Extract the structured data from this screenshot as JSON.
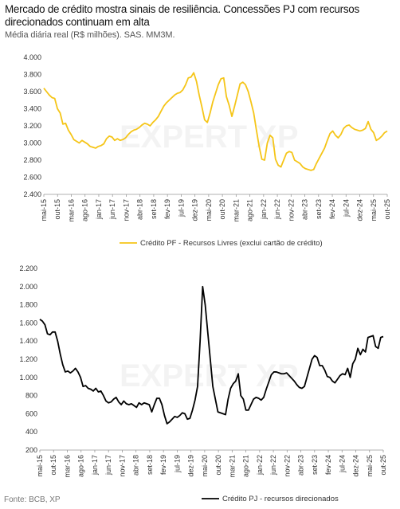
{
  "header": {
    "title": "Mercado de crédito mostra sinais de resiliência. Concessões PJ com recursos direcionados continuam em alta",
    "subtitle": "Média diária real (R$ milhões). SAS. MM3M."
  },
  "source": "Fonte: BCB, XP",
  "watermark": "EXPERT XP",
  "chart_data": [
    {
      "type": "line",
      "color": "#f5c518",
      "ylim": [
        2400,
        4000
      ],
      "yticks": [
        2400,
        2600,
        2800,
        3000,
        3200,
        3400,
        3600,
        3800,
        4000
      ],
      "ytick_labels": [
        "2.400",
        "2.600",
        "2.800",
        "3.000",
        "3.200",
        "3.400",
        "3.600",
        "3.800",
        "4.000"
      ],
      "xtick_labels": [
        "mai-15",
        "out-15",
        "mar-16",
        "ago-16",
        "jan-17",
        "jun-17",
        "nov-17",
        "abr-18",
        "set-18",
        "fev-19",
        "jul-19",
        "dez-19",
        "mai-20",
        "out-20",
        "mar-21",
        "ago-21",
        "jan-22",
        "jun-22",
        "nov-22",
        "abr-23",
        "set-23",
        "fev-24",
        "jul-24",
        "dez-24",
        "mai-25",
        "out-25"
      ],
      "series": [
        {
          "name": "Crédito PF - Recursos Livres (exclui cartão de crédito)",
          "values": [
            3640,
            3600,
            3560,
            3530,
            3520,
            3400,
            3350,
            3220,
            3230,
            3150,
            3100,
            3040,
            3020,
            3000,
            3030,
            3010,
            2990,
            2960,
            2950,
            2940,
            2960,
            2970,
            2990,
            3050,
            3080,
            3070,
            3030,
            3050,
            3030,
            3040,
            3060,
            3100,
            3130,
            3150,
            3160,
            3180,
            3210,
            3230,
            3220,
            3200,
            3240,
            3270,
            3310,
            3370,
            3430,
            3470,
            3500,
            3530,
            3560,
            3580,
            3590,
            3620,
            3680,
            3760,
            3770,
            3820,
            3720,
            3560,
            3420,
            3270,
            3240,
            3350,
            3480,
            3580,
            3680,
            3750,
            3760,
            3540,
            3440,
            3310,
            3430,
            3560,
            3690,
            3710,
            3680,
            3600,
            3480,
            3350,
            3150,
            2960,
            2810,
            2800,
            3000,
            3090,
            3060,
            2810,
            2740,
            2720,
            2800,
            2880,
            2900,
            2890,
            2800,
            2780,
            2760,
            2720,
            2700,
            2690,
            2680,
            2690,
            2760,
            2820,
            2880,
            2940,
            3030,
            3110,
            3140,
            3090,
            3060,
            3100,
            3170,
            3200,
            3210,
            3180,
            3160,
            3150,
            3140,
            3150,
            3170,
            3250,
            3160,
            3120,
            3030,
            3050,
            3080,
            3120,
            3140
          ]
        }
      ]
    },
    {
      "type": "line",
      "color": "#000000",
      "ylim": [
        200,
        2200
      ],
      "yticks": [
        200,
        400,
        600,
        800,
        1000,
        1200,
        1400,
        1600,
        1800,
        2000,
        2200
      ],
      "ytick_labels": [
        "200",
        "400",
        "600",
        "800",
        "1.000",
        "1.200",
        "1.400",
        "1.600",
        "1.800",
        "2.000",
        "2.200"
      ],
      "xtick_labels": [
        "mai-15",
        "out-15",
        "mar-16",
        "ago-16",
        "jan-17",
        "jun-17",
        "nov-17",
        "abr-18",
        "set-18",
        "fev-19",
        "jul-19",
        "dez-19",
        "mai-20",
        "out-20",
        "mar-21",
        "ago-21",
        "jan-22",
        "jun-22",
        "nov-22",
        "abr-23",
        "set-23",
        "fev-24",
        "jul-24",
        "dez-24",
        "mai-25",
        "out-25"
      ],
      "series": [
        {
          "name": "Crédito PJ - recursos direcionados",
          "values": [
            1640,
            1620,
            1580,
            1480,
            1470,
            1500,
            1500,
            1400,
            1260,
            1140,
            1060,
            1070,
            1050,
            1070,
            1100,
            1060,
            1000,
            900,
            910,
            880,
            870,
            850,
            880,
            840,
            850,
            800,
            740,
            720,
            730,
            760,
            780,
            730,
            700,
            740,
            710,
            700,
            710,
            690,
            670,
            720,
            700,
            720,
            710,
            700,
            620,
            700,
            770,
            770,
            700,
            580,
            490,
            510,
            540,
            570,
            560,
            580,
            610,
            600,
            540,
            550,
            640,
            750,
            900,
            1400,
            2000,
            1800,
            1500,
            1200,
            900,
            760,
            620,
            610,
            600,
            590,
            760,
            880,
            930,
            960,
            1040,
            800,
            760,
            640,
            640,
            700,
            760,
            780,
            770,
            750,
            780,
            870,
            950,
            1030,
            1060,
            1060,
            1050,
            1040,
            1040,
            1050,
            1020,
            990,
            960,
            920,
            890,
            880,
            900,
            1000,
            1100,
            1200,
            1240,
            1220,
            1130,
            1130,
            1080,
            1010,
            1000,
            960,
            940,
            980,
            1020,
            1040,
            1030,
            1100,
            1000,
            1150,
            1200,
            1320,
            1250,
            1310,
            1280,
            1440,
            1450,
            1460,
            1340,
            1320,
            1440,
            1450
          ]
        }
      ]
    }
  ]
}
